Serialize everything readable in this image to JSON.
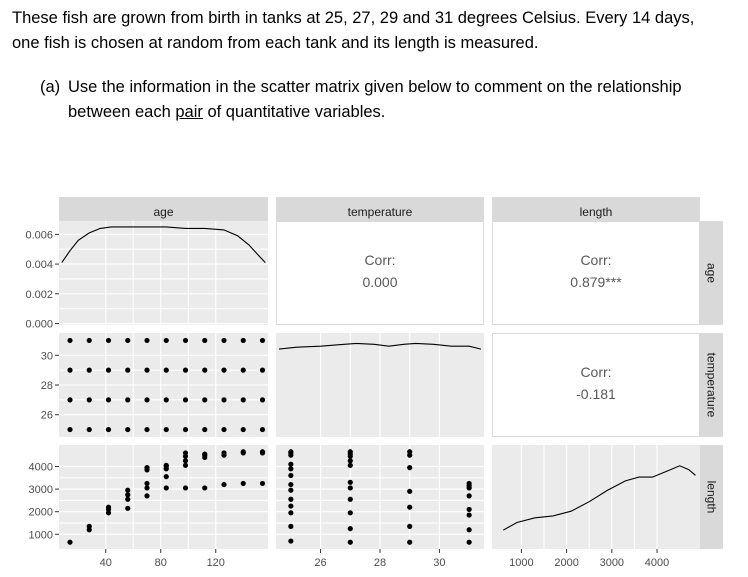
{
  "intro": {
    "line1": "These fish are grown from birth in tanks at 25, 27, 29 and 31 degrees Celsius.  Every 14 days,",
    "line2": "one fish is chosen at random from each tank and its length is measured."
  },
  "question": {
    "label": "(a)",
    "text_line1": "Use the information in the scatter matrix given below to comment on the relationship",
    "text_line2_before": "between each ",
    "text_line2_underlined": "pair",
    "text_line2_after": " of quantitative variables."
  },
  "chart_data": {
    "type": "scatter",
    "variables": [
      "age",
      "temperature",
      "length"
    ],
    "top_strips": [
      "age",
      "temperature",
      "length"
    ],
    "right_strips": [
      "age",
      "temperature",
      "length"
    ],
    "correlations": [
      {
        "row": "age",
        "col": "temperature",
        "label": "Corr:",
        "value": "0.000"
      },
      {
        "row": "age",
        "col": "length",
        "label": "Corr:",
        "value": "0.879***"
      },
      {
        "row": "temperature",
        "col": "length",
        "label": "Corr:",
        "value": "-0.181"
      }
    ],
    "axes": {
      "age": {
        "range": [
          6,
          158
        ],
        "ticks": [
          40,
          80,
          120
        ],
        "tick_labels": [
          "40",
          "80",
          "120"
        ]
      },
      "temperature": {
        "range": [
          24.5,
          31.5
        ],
        "ticks": [
          26,
          28,
          30
        ],
        "tick_labels": [
          "26",
          "28",
          "30"
        ]
      },
      "length": {
        "range": [
          350,
          4950
        ],
        "ticks": [
          1000,
          2000,
          3000,
          4000
        ],
        "tick_labels": [
          "1000",
          "2000",
          "3000",
          "4000"
        ]
      },
      "age_density": {
        "range": [
          -0.0001,
          0.0069
        ],
        "ticks": [
          0,
          0.002,
          0.004,
          0.006
        ],
        "tick_labels": [
          "0.000",
          "0.002",
          "0.004",
          "0.006"
        ]
      }
    },
    "ages": [
      14,
      28,
      42,
      56,
      70,
      84,
      98,
      112,
      126,
      140,
      154
    ],
    "temperatures": [
      25,
      27,
      29,
      31
    ],
    "age_length_points": [
      [
        14,
        650
      ],
      [
        28,
        1200
      ],
      [
        28,
        1350
      ],
      [
        42,
        1950
      ],
      [
        42,
        2100
      ],
      [
        42,
        2200
      ],
      [
        56,
        2150
      ],
      [
        56,
        2550
      ],
      [
        56,
        2750
      ],
      [
        56,
        2950
      ],
      [
        70,
        2700
      ],
      [
        70,
        3050
      ],
      [
        70,
        3250
      ],
      [
        70,
        3850
      ],
      [
        70,
        3950
      ],
      [
        84,
        3050
      ],
      [
        84,
        3550
      ],
      [
        84,
        3900
      ],
      [
        84,
        4000
      ],
      [
        84,
        4050
      ],
      [
        98,
        3050
      ],
      [
        98,
        4050
      ],
      [
        98,
        4250
      ],
      [
        98,
        4450
      ],
      [
        98,
        4600
      ],
      [
        112,
        3050
      ],
      [
        112,
        4400
      ],
      [
        112,
        4500
      ],
      [
        112,
        4550
      ],
      [
        126,
        3200
      ],
      [
        126,
        4500
      ],
      [
        126,
        4600
      ],
      [
        140,
        3250
      ],
      [
        140,
        4600
      ],
      [
        140,
        4650
      ],
      [
        154,
        3250
      ],
      [
        154,
        4600
      ],
      [
        154,
        4650
      ]
    ],
    "temperature_length_points": [
      [
        25,
        700
      ],
      [
        25,
        1350
      ],
      [
        25,
        1950
      ],
      [
        25,
        2250
      ],
      [
        25,
        2550
      ],
      [
        25,
        2950
      ],
      [
        25,
        3200
      ],
      [
        25,
        3600
      ],
      [
        25,
        3900
      ],
      [
        25,
        4100
      ],
      [
        25,
        4500
      ],
      [
        25,
        4600
      ],
      [
        25,
        4650
      ],
      [
        27,
        650
      ],
      [
        27,
        1250
      ],
      [
        27,
        1950
      ],
      [
        27,
        2550
      ],
      [
        27,
        3050
      ],
      [
        27,
        3300
      ],
      [
        27,
        4050
      ],
      [
        27,
        4250
      ],
      [
        27,
        4450
      ],
      [
        27,
        4550
      ],
      [
        27,
        4650
      ],
      [
        29,
        650
      ],
      [
        29,
        1350
      ],
      [
        29,
        2200
      ],
      [
        29,
        2900
      ],
      [
        29,
        3950
      ],
      [
        29,
        4500
      ],
      [
        29,
        4650
      ],
      [
        31,
        650
      ],
      [
        31,
        1200
      ],
      [
        31,
        1850
      ],
      [
        31,
        2100
      ],
      [
        31,
        2700
      ],
      [
        31,
        3050
      ],
      [
        31,
        3150
      ],
      [
        31,
        3250
      ]
    ],
    "age_density_curve": [
      [
        8,
        0.0041
      ],
      [
        14,
        0.0049
      ],
      [
        20,
        0.0056
      ],
      [
        28,
        0.0061
      ],
      [
        36,
        0.0064
      ],
      [
        44,
        0.0065
      ],
      [
        56,
        0.0065
      ],
      [
        70,
        0.0065
      ],
      [
        84,
        0.0065
      ],
      [
        98,
        0.0064
      ],
      [
        112,
        0.0064
      ],
      [
        126,
        0.0063
      ],
      [
        136,
        0.0059
      ],
      [
        144,
        0.0053
      ],
      [
        150,
        0.0047
      ],
      [
        156,
        0.0041
      ]
    ],
    "temperature_density_curve": [
      [
        24.6,
        0.93
      ],
      [
        25.2,
        0.95
      ],
      [
        26.0,
        0.96
      ],
      [
        26.8,
        0.98
      ],
      [
        27.2,
        0.99
      ],
      [
        27.8,
        0.98
      ],
      [
        28.3,
        0.96
      ],
      [
        28.8,
        0.98
      ],
      [
        29.2,
        0.99
      ],
      [
        29.8,
        0.98
      ],
      [
        30.4,
        0.96
      ],
      [
        31.0,
        0.96
      ],
      [
        31.4,
        0.93
      ]
    ],
    "length_density_curve": [
      [
        600,
        0.2
      ],
      [
        900,
        0.28
      ],
      [
        1300,
        0.33
      ],
      [
        1700,
        0.35
      ],
      [
        2100,
        0.4
      ],
      [
        2500,
        0.5
      ],
      [
        2900,
        0.62
      ],
      [
        3300,
        0.72
      ],
      [
        3600,
        0.76
      ],
      [
        3900,
        0.76
      ],
      [
        4200,
        0.82
      ],
      [
        4500,
        0.88
      ],
      [
        4700,
        0.84
      ],
      [
        4850,
        0.78
      ]
    ]
  }
}
